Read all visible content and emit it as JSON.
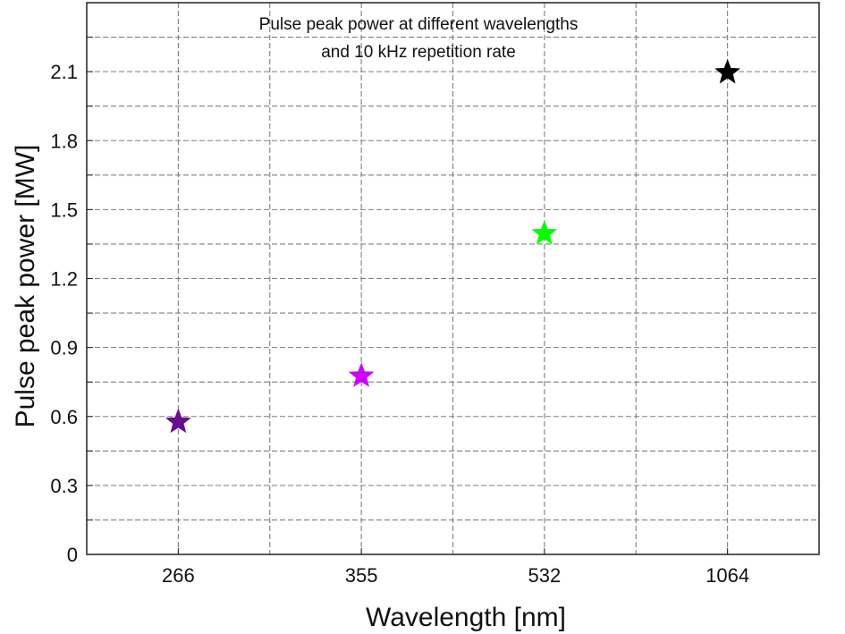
{
  "chart_data": {
    "type": "scatter",
    "title_lines": [
      "Pulse peak power at different wavelengths",
      "and 10 kHz repetition rate"
    ],
    "xlabel": "Wavelength [nm]",
    "ylabel": "Pulse peak power [MW]",
    "categories": [
      "266",
      "355",
      "532",
      "1064"
    ],
    "values": [
      0.58,
      0.78,
      1.4,
      2.1
    ],
    "point_colors": [
      "#6a0d91",
      "#cc00ff",
      "#00ff00",
      "#000000"
    ],
    "marker": "star",
    "ylim": [
      0,
      2.4
    ],
    "yticks": [
      "0",
      "0.3",
      "0.6",
      "0.9",
      "1.2",
      "1.5",
      "1.8",
      "2.1"
    ],
    "grid": true
  }
}
